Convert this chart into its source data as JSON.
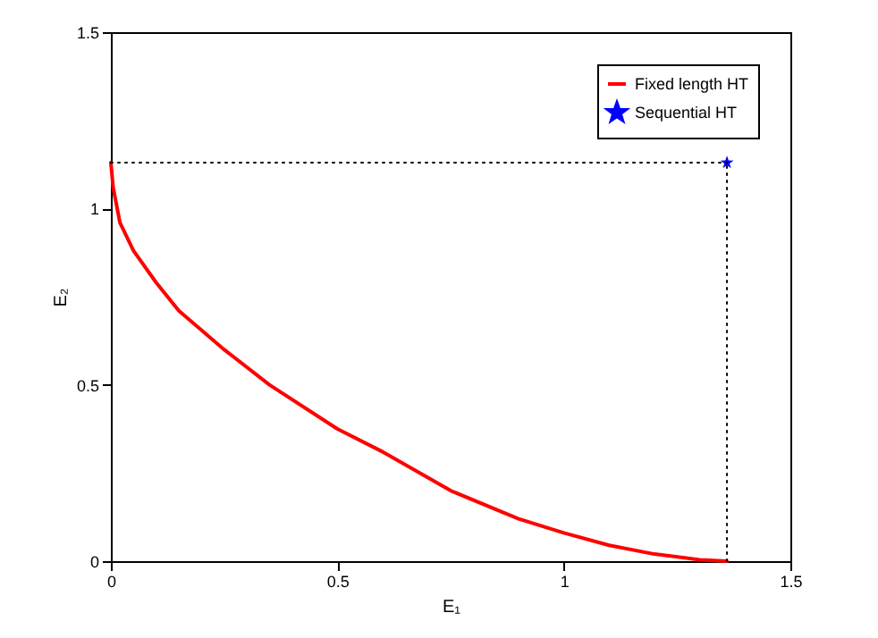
{
  "chart_data": {
    "type": "line",
    "xlabel": "E₁",
    "ylabel": "E₂",
    "xlim": [
      0,
      1.5
    ],
    "ylim": [
      0,
      1.5
    ],
    "xticks": [
      0,
      0.5,
      1,
      1.5
    ],
    "yticks": [
      0,
      0.5,
      1,
      1.5
    ],
    "legend": "top right",
    "grid": false,
    "series": [
      {
        "name": "Fixed length HT",
        "color": "#ff0000",
        "line_style": "solid",
        "x": [
          0,
          0.005,
          0.02,
          0.05,
          0.1,
          0.15,
          0.25,
          0.35,
          0.5,
          0.6,
          0.75,
          0.9,
          1,
          1.1,
          1.2,
          1.3,
          1.36
        ],
        "values": [
          1.13,
          1.06,
          0.96,
          0.88,
          0.79,
          0.71,
          0.6,
          0.5,
          0.375,
          0.31,
          0.2,
          0.12,
          0.08,
          0.045,
          0.02,
          0.004,
          0
        ]
      },
      {
        "name": "Sequential HT",
        "type": "scatter",
        "marker": "star",
        "color": "#0000ff",
        "x": [
          1.36
        ],
        "values": [
          1.13
        ]
      },
      {
        "line_style": "dotted",
        "color": "#000000",
        "x": [
          0,
          1.36
        ],
        "values": [
          1.13,
          1.13
        ]
      },
      {
        "line_style": "dotted",
        "color": "#000000",
        "x": [
          1.36,
          1.36
        ],
        "values": [
          0,
          1.13
        ]
      }
    ]
  }
}
